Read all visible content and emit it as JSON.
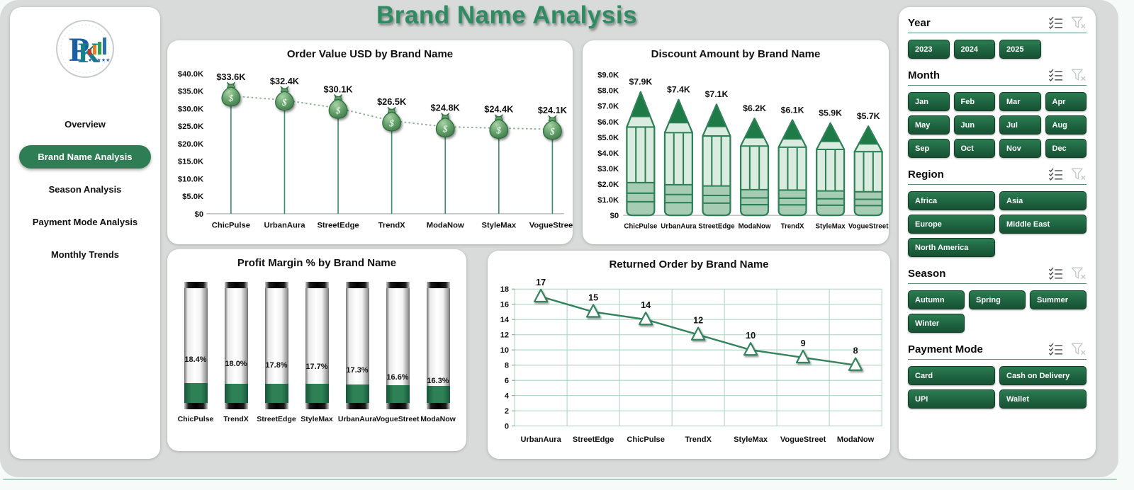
{
  "page_title": "Brand Name Analysis",
  "sidebar": {
    "items": [
      {
        "label": "Overview",
        "active": false
      },
      {
        "label": "Brand Name Analysis",
        "active": true
      },
      {
        "label": "Season Analysis",
        "active": false
      },
      {
        "label": "Payment Mode Analysis",
        "active": false
      },
      {
        "label": "Monthly Trends",
        "active": false
      }
    ]
  },
  "slicers": [
    {
      "title": "Year",
      "options": [
        "2023",
        "2024",
        "2025"
      ]
    },
    {
      "title": "Month",
      "options": [
        "Jan",
        "Feb",
        "Mar",
        "Apr",
        "May",
        "Jun",
        "Jul",
        "Aug",
        "Sep",
        "Oct",
        "Nov",
        "Dec"
      ]
    },
    {
      "title": "Region",
      "options": [
        "Africa",
        "Asia",
        "Europe",
        "Middle East",
        "North America"
      ]
    },
    {
      "title": "Season",
      "options": [
        "Autumn",
        "Spring",
        "Summer",
        "Winter"
      ]
    },
    {
      "title": "Payment Mode",
      "options": [
        "Card",
        "Cash on Delivery",
        "UPI",
        "Wallet"
      ]
    }
  ],
  "chart_data": [
    {
      "type": "lollipop",
      "marker": "money-bag",
      "title": "Order Value USD by Brand Name",
      "categories": [
        "ChicPulse",
        "UrbanAura",
        "StreetEdge",
        "TrendX",
        "ModaNow",
        "StyleMax",
        "VogueStreet"
      ],
      "values": [
        33600,
        32400,
        30100,
        26500,
        24800,
        24400,
        24100
      ],
      "labels": [
        "$33.6K",
        "$32.4K",
        "$30.1K",
        "$26.5K",
        "$24.8K",
        "$24.4K",
        "$24.1K"
      ],
      "ylim": [
        0,
        40000
      ],
      "yticks": [
        "$0",
        "$5.0K",
        "$10.0K",
        "$15.0K",
        "$20.0K",
        "$25.0K",
        "$30.0K",
        "$35.0K",
        "$40.0K"
      ],
      "grid": false,
      "legend": "none"
    },
    {
      "type": "bar",
      "bar_style": "pencil",
      "title": "Discount Amount by Brand Name",
      "categories": [
        "ChicPulse",
        "UrbanAura",
        "StreetEdge",
        "ModaNow",
        "TrendX",
        "StyleMax",
        "VogueStreet"
      ],
      "values": [
        7900,
        7400,
        7100,
        6200,
        6100,
        5900,
        5700
      ],
      "labels": [
        "$7.9K",
        "$7.4K",
        "$7.1K",
        "$6.2K",
        "$6.1K",
        "$5.9K",
        "$5.7K"
      ],
      "ylim": [
        0,
        9000
      ],
      "yticks": [
        "$0",
        "$1.0K",
        "$2.0K",
        "$3.0K",
        "$4.0K",
        "$5.0K",
        "$6.0K",
        "$7.0K",
        "$8.0K",
        "$9.0K"
      ],
      "grid": false,
      "legend": "none"
    },
    {
      "type": "bar",
      "bar_style": "tube-thermometer",
      "title": "Profit Margin % by Brand Name",
      "categories": [
        "ChicPulse",
        "TrendX",
        "StreetEdge",
        "StyleMax",
        "UrbanAura",
        "VogueStreet",
        "ModaNow"
      ],
      "values": [
        18.4,
        18.0,
        17.8,
        17.7,
        17.3,
        16.6,
        16.3
      ],
      "labels": [
        "18.4%",
        "18.0%",
        "17.8%",
        "17.7%",
        "17.3%",
        "16.6%",
        "16.3%"
      ],
      "grid": false,
      "legend": "none"
    },
    {
      "type": "line",
      "marker": "triangle",
      "title": "Returned Order by Brand Name",
      "categories": [
        "UrbanAura",
        "StreetEdge",
        "ChicPulse",
        "TrendX",
        "StyleMax",
        "VogueStreet",
        "ModaNow"
      ],
      "values": [
        17,
        15,
        14,
        12,
        10,
        9,
        8
      ],
      "labels": [
        "17",
        "15",
        "14",
        "12",
        "10",
        "9",
        "8"
      ],
      "ylim": [
        0,
        18
      ],
      "yticks": [
        0,
        2,
        4,
        6,
        8,
        10,
        12,
        14,
        16,
        18
      ],
      "grid": true,
      "legend": "none"
    }
  ],
  "colors": {
    "button_green": "#1e6441",
    "active_nav_green": "#2e7d55",
    "title_green": "#2e8b62",
    "chart_green": "#35835e",
    "grid_green": "#a8d4be",
    "pencil_body": "#d9ecdf",
    "pencil_dark": "#1e7a47",
    "pencil_band": "#a6cdb4",
    "canvas_gray": "#d8dbd9"
  }
}
